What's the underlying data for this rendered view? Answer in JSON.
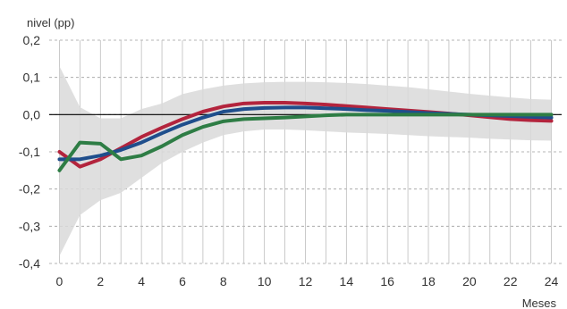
{
  "chart_data": {
    "type": "line",
    "title": "",
    "ylabel": "nivel (pp)",
    "xlabel": "Meses",
    "x": [
      0,
      1,
      2,
      3,
      4,
      5,
      6,
      7,
      8,
      9,
      10,
      11,
      12,
      13,
      14,
      15,
      16,
      17,
      18,
      19,
      20,
      21,
      22,
      23,
      24
    ],
    "xticks": [
      0,
      2,
      4,
      6,
      8,
      10,
      12,
      14,
      16,
      18,
      20,
      22,
      24
    ],
    "yticks": [
      -0.4,
      -0.3,
      -0.2,
      -0.1,
      0.0,
      0.1,
      0.2
    ],
    "ytick_labels": [
      "-0,4",
      "-0,3",
      "-0,2",
      "-0,1",
      "0,0",
      "0,1",
      "0,2"
    ],
    "xtick_labels": [
      "0",
      "2",
      "4",
      "6",
      "8",
      "10",
      "12",
      "14",
      "16",
      "18",
      "20",
      "22",
      "24"
    ],
    "xlim": [
      -0.5,
      24.5
    ],
    "ylim": [
      -0.4,
      0.2
    ],
    "grid": true,
    "band": {
      "upper": [
        0.13,
        0.02,
        -0.01,
        -0.01,
        0.015,
        0.03,
        0.055,
        0.068,
        0.078,
        0.084,
        0.087,
        0.088,
        0.088,
        0.087,
        0.085,
        0.082,
        0.078,
        0.074,
        0.068,
        0.062,
        0.056,
        0.051,
        0.046,
        0.042,
        0.04
      ],
      "lower": [
        -0.38,
        -0.27,
        -0.23,
        -0.21,
        -0.17,
        -0.13,
        -0.1,
        -0.075,
        -0.055,
        -0.045,
        -0.04,
        -0.04,
        -0.042,
        -0.045,
        -0.048,
        -0.05,
        -0.052,
        -0.055,
        -0.058,
        -0.06,
        -0.062,
        -0.065,
        -0.067,
        -0.069,
        -0.07
      ],
      "color": "#d9d9d9"
    },
    "series": [
      {
        "color": "#b3243d",
        "values": [
          -0.1,
          -0.14,
          -0.12,
          -0.09,
          -0.06,
          -0.035,
          -0.012,
          0.008,
          0.022,
          0.03,
          0.032,
          0.032,
          0.03,
          0.027,
          0.023,
          0.019,
          0.015,
          0.011,
          0.007,
          0.003,
          -0.002,
          -0.007,
          -0.012,
          -0.015,
          -0.017
        ]
      },
      {
        "color": "#1f4e8c",
        "values": [
          -0.12,
          -0.12,
          -0.11,
          -0.095,
          -0.075,
          -0.05,
          -0.027,
          -0.008,
          0.008,
          0.015,
          0.018,
          0.019,
          0.019,
          0.017,
          0.015,
          0.012,
          0.01,
          0.007,
          0.004,
          0.002,
          0.0,
          -0.002,
          -0.004,
          -0.006,
          -0.008
        ]
      },
      {
        "color": "#2e7d45",
        "values": [
          -0.15,
          -0.075,
          -0.078,
          -0.12,
          -0.11,
          -0.085,
          -0.055,
          -0.033,
          -0.018,
          -0.012,
          -0.01,
          -0.008,
          -0.005,
          -0.002,
          0.0,
          0.0,
          0.0,
          0.0,
          0.0,
          0.0,
          0.0,
          0.0,
          0.0,
          0.0,
          0.0
        ]
      }
    ],
    "zero_line_color": "#000000"
  }
}
